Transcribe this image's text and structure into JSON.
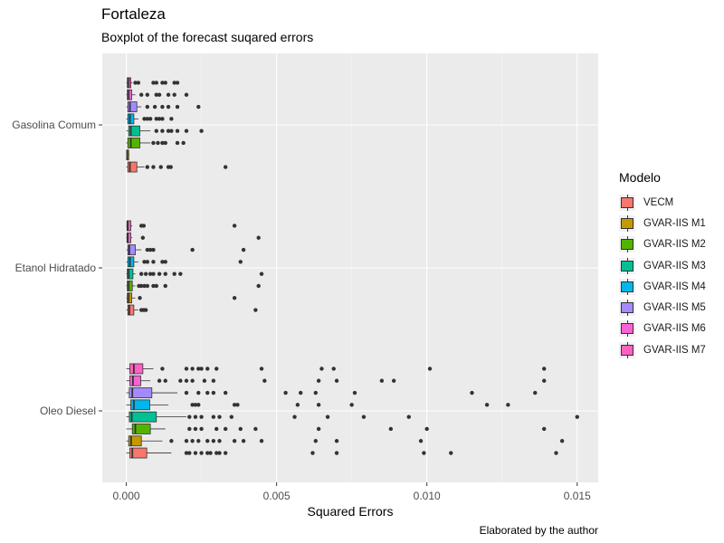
{
  "chart_data": {
    "type": "boxplot",
    "title": "Fortaleza",
    "subtitle": "Boxplot of the forecast suqared errors",
    "xlabel": "Squared Errors",
    "ylabel": "",
    "caption": "Elaborated by the author",
    "xlim": [
      -0.0008,
      0.0157
    ],
    "xticks": [
      0.0,
      0.005,
      0.01,
      0.015
    ],
    "xtick_labels": [
      "0.000",
      "0.005",
      "0.010",
      "0.015"
    ],
    "categories": [
      "Gasolina Comum",
      "Etanol Hidratado",
      "Oleo Diesel"
    ],
    "legend_title": "Modelo",
    "legend_position": "right",
    "grid": true,
    "series": [
      {
        "name": "VECM",
        "color": "#F8766D",
        "boxes": [
          {
            "min": 0.0,
            "q1": 5e-05,
            "median": 0.00012,
            "q3": 0.00035,
            "max": 0.0006,
            "outliers": [
              0.0007,
              0.0009,
              0.00115,
              0.0014,
              0.00148,
              0.0033
            ]
          },
          {
            "min": 0.0,
            "q1": 5e-05,
            "median": 0.0001,
            "q3": 0.00025,
            "max": 0.0004,
            "outliers": [
              0.0005,
              0.00058,
              0.00065,
              0.0043
            ]
          },
          {
            "min": 0.0,
            "q1": 0.00012,
            "median": 0.0002,
            "q3": 0.00068,
            "max": 0.0015,
            "outliers": [
              0.002,
              0.0021,
              0.0023,
              0.0025,
              0.0027,
              0.0028,
              0.003,
              0.0031,
              0.0033,
              0.0062,
              0.007,
              0.0099,
              0.0108,
              0.0143
            ]
          }
        ]
      },
      {
        "name": "GVAR-IIS M1",
        "color": "#C49A00",
        "boxes": [
          {
            "min": 0.0,
            "q1": 1e-05,
            "median": 3e-05,
            "q3": 8e-05,
            "max": 0.0001,
            "outliers": []
          },
          {
            "min": 0.0,
            "q1": 3e-05,
            "median": 8e-05,
            "q3": 0.00018,
            "max": 0.0003,
            "outliers": [
              0.00045,
              0.0036
            ]
          },
          {
            "min": 0.0,
            "q1": 8e-05,
            "median": 0.00016,
            "q3": 0.0005,
            "max": 0.0012,
            "outliers": [
              0.0015,
              0.002,
              0.0022,
              0.0024,
              0.0027,
              0.0029,
              0.0031,
              0.0036,
              0.0039,
              0.0045,
              0.0063,
              0.007,
              0.0098,
              0.0145
            ]
          }
        ]
      },
      {
        "name": "GVAR-IIS M2",
        "color": "#53B400",
        "boxes": [
          {
            "min": 0.0,
            "q1": 5e-05,
            "median": 0.00015,
            "q3": 0.00045,
            "max": 0.0008,
            "outliers": [
              0.0009,
              0.00105,
              0.0012,
              0.0013,
              0.0017,
              0.0019
            ]
          },
          {
            "min": 0.0,
            "q1": 3e-05,
            "median": 8e-05,
            "q3": 0.0002,
            "max": 0.0003,
            "outliers": [
              0.00042,
              0.0005,
              0.0006,
              0.0007,
              0.0009,
              0.001,
              0.0013,
              0.0044
            ]
          },
          {
            "min": 0.0,
            "q1": 0.0002,
            "median": 0.0003,
            "q3": 0.0008,
            "max": 0.0013,
            "outliers": [
              0.0021,
              0.0023,
              0.0025,
              0.003,
              0.0033,
              0.0038,
              0.0043,
              0.0064,
              0.0088,
              0.01,
              0.0139
            ]
          }
        ]
      },
      {
        "name": "GVAR-IIS M3",
        "color": "#00C094",
        "boxes": [
          {
            "min": 0.0,
            "q1": 8e-05,
            "median": 0.00015,
            "q3": 0.00045,
            "max": 0.0008,
            "outliers": [
              0.001,
              0.0012,
              0.0014,
              0.0015,
              0.0017,
              0.002,
              0.0025
            ]
          },
          {
            "min": 0.0,
            "q1": 3e-05,
            "median": 8e-05,
            "q3": 0.00022,
            "max": 0.0003,
            "outliers": [
              0.0005,
              0.00065,
              0.0008,
              0.0009,
              0.0011,
              0.0013,
              0.0016,
              0.0018,
              0.0045
            ]
          },
          {
            "min": 0.0,
            "q1": 0.0001,
            "median": 0.00018,
            "q3": 0.001,
            "max": 0.002,
            "outliers": [
              0.0021,
              0.0023,
              0.0025,
              0.0029,
              0.0031,
              0.0035,
              0.0056,
              0.0067,
              0.0079,
              0.0094,
              0.015
            ]
          }
        ]
      },
      {
        "name": "GVAR-IIS M4",
        "color": "#00B6EB",
        "boxes": [
          {
            "min": 0.0,
            "q1": 5e-05,
            "median": 0.00012,
            "q3": 0.00025,
            "max": 0.0004,
            "outliers": [
              0.0006,
              0.0007,
              0.0008,
              0.001,
              0.0011,
              0.0012,
              0.0015
            ]
          },
          {
            "min": 0.0,
            "q1": 5e-05,
            "median": 0.00012,
            "q3": 0.00025,
            "max": 0.0004,
            "outliers": [
              0.0006,
              0.0007,
              0.0009,
              0.0012,
              0.0013,
              0.0038
            ]
          },
          {
            "min": 0.0,
            "q1": 0.00015,
            "median": 0.00025,
            "q3": 0.00078,
            "max": 0.0014,
            "outliers": [
              0.0022,
              0.0023,
              0.0024,
              0.0036,
              0.0037,
              0.0057,
              0.0064,
              0.0075,
              0.012,
              0.0127
            ]
          }
        ]
      },
      {
        "name": "GVAR-IIS M5",
        "color": "#A58AFF",
        "boxes": [
          {
            "min": 0.0,
            "q1": 5e-05,
            "median": 0.00012,
            "q3": 0.00035,
            "max": 0.0005,
            "outliers": [
              0.0007,
              0.00095,
              0.0012,
              0.0014,
              0.0017,
              0.0024
            ]
          },
          {
            "min": 0.0,
            "q1": 5e-05,
            "median": 0.0001,
            "q3": 0.0003,
            "max": 0.0005,
            "outliers": [
              0.0007,
              0.0008,
              0.0009,
              0.0022,
              0.0039
            ]
          },
          {
            "min": 0.0,
            "q1": 0.0001,
            "median": 0.0002,
            "q3": 0.00085,
            "max": 0.0017,
            "outliers": [
              0.002,
              0.0024,
              0.0027,
              0.0029,
              0.0033,
              0.0053,
              0.0058,
              0.0063,
              0.0076,
              0.0115,
              0.0136
            ]
          }
        ]
      },
      {
        "name": "GVAR-IIS M6",
        "color": "#FB61D7",
        "boxes": [
          {
            "min": 0.0,
            "q1": 3e-05,
            "median": 8e-05,
            "q3": 0.00018,
            "max": 0.0003,
            "outliers": [
              0.0005,
              0.0007,
              0.001,
              0.0011,
              0.0014,
              0.0016,
              0.002
            ]
          },
          {
            "min": 0.0,
            "q1": 2e-05,
            "median": 5e-05,
            "q3": 0.00015,
            "max": 0.0002,
            "outliers": [
              0.00055,
              0.0044
            ]
          },
          {
            "min": 0.0,
            "q1": 0.00012,
            "median": 0.00022,
            "q3": 0.00048,
            "max": 0.0008,
            "outliers": [
              0.0011,
              0.0013,
              0.0018,
              0.002,
              0.0022,
              0.0026,
              0.0029,
              0.0046,
              0.0064,
              0.007,
              0.0085,
              0.0089,
              0.0139
            ]
          }
        ]
      },
      {
        "name": "GVAR-IIS M7",
        "color": "#FF61C3",
        "boxes": [
          {
            "min": 0.0,
            "q1": 3e-05,
            "median": 8e-05,
            "q3": 0.00015,
            "max": 0.0002,
            "outliers": [
              0.0003,
              0.0004,
              0.0009,
              0.001,
              0.0012,
              0.0013,
              0.0016,
              0.0017
            ]
          },
          {
            "min": 0.0,
            "q1": 2e-05,
            "median": 5e-05,
            "q3": 0.00015,
            "max": 0.0002,
            "outliers": [
              0.0005,
              0.00058,
              0.0036
            ]
          },
          {
            "min": 0.0,
            "q1": 0.00012,
            "median": 0.00025,
            "q3": 0.00055,
            "max": 0.0009,
            "outliers": [
              0.0012,
              0.002,
              0.0022,
              0.0024,
              0.0025,
              0.0027,
              0.003,
              0.0045,
              0.0065,
              0.0069,
              0.0101,
              0.0139
            ]
          }
        ]
      }
    ]
  }
}
